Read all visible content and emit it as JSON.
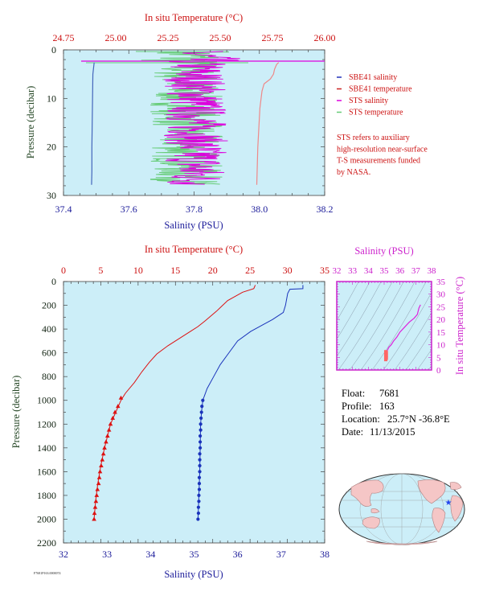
{
  "chart_data": [
    {
      "type": "line",
      "panel": "top",
      "axes": {
        "x_bottom": {
          "label": "Salinity (PSU)",
          "range": [
            37.4,
            38.2
          ],
          "ticks": [
            "37.4",
            "37.6",
            "37.8",
            "38.0",
            "38.2"
          ]
        },
        "x_top": {
          "label": "In situ Temperature (°C)",
          "range": [
            24.75,
            26.0
          ],
          "ticks": [
            "24.75",
            "25.00",
            "25.25",
            "25.50",
            "25.75",
            "26.00"
          ]
        },
        "y": {
          "label": "Pressure (decibar)",
          "range": [
            0,
            30
          ],
          "inverted": true,
          "ticks": [
            "0",
            "10",
            "20",
            "30"
          ]
        }
      },
      "legend": {
        "placement": "right",
        "entries": [
          {
            "label": "SBE41 salinity",
            "color": "#2233bb"
          },
          {
            "label": "SBE41 temperature",
            "color": "#cc2222"
          },
          {
            "label": "STS salinity",
            "color": "#dd00dd"
          },
          {
            "label": "STS temperature",
            "color": "#66cc77"
          }
        ],
        "note": "STS refers to auxiliary high-resolution near-surface T-S measurements funded by NASA.",
        "note_lines": [
          "STS refers to auxiliary",
          "high-resolution near-surface",
          "T-S measurements funded",
          "by NASA."
        ]
      },
      "series": [
        {
          "name": "SBE41 salinity",
          "axis": "salinity",
          "points": [
            [
              37.494,
              2.6
            ],
            [
              37.49,
              5
            ],
            [
              37.489,
              10
            ],
            [
              37.488,
              15
            ],
            [
              37.487,
              20
            ],
            [
              37.487,
              25
            ],
            [
              37.486,
              27.8
            ]
          ]
        },
        {
          "name": "SBE41 temperature",
          "axis": "temperature",
          "points": [
            [
              25.78,
              2.6
            ],
            [
              25.77,
              3.0
            ],
            [
              25.76,
              4.0
            ],
            [
              25.755,
              5.0
            ],
            [
              25.74,
              6.0
            ],
            [
              25.71,
              7.0
            ],
            [
              25.7,
              8.5
            ],
            [
              25.69,
              12
            ],
            [
              25.68,
              20
            ],
            [
              25.675,
              27.8
            ]
          ]
        }
      ]
    },
    {
      "type": "line",
      "panel": "bottom",
      "axes": {
        "x_bottom": {
          "label": "Salinity (PSU)",
          "range": [
            32,
            38
          ],
          "ticks": [
            "32",
            "33",
            "34",
            "35",
            "36",
            "37",
            "38"
          ]
        },
        "x_top": {
          "label": "In situ Temperature (°C)",
          "range": [
            0,
            35
          ],
          "ticks": [
            "0",
            "5",
            "10",
            "15",
            "20",
            "25",
            "30",
            "35"
          ]
        },
        "y": {
          "label": "Pressure (decibar)",
          "range": [
            0,
            2200
          ],
          "inverted": true,
          "ticks": [
            "0",
            "200",
            "400",
            "600",
            "800",
            "1000",
            "1200",
            "1400",
            "1600",
            "1800",
            "2000",
            "2200"
          ]
        }
      },
      "series": [
        {
          "name": "Salinity",
          "axis": "salinity",
          "color": "#1a33bb",
          "points": [
            [
              37.5,
              30
            ],
            [
              37.5,
              60
            ],
            [
              37.2,
              65
            ],
            [
              37.15,
              100
            ],
            [
              37.1,
              200
            ],
            [
              37.05,
              260
            ],
            [
              36.8,
              320
            ],
            [
              36.6,
              360
            ],
            [
              36.3,
              420
            ],
            [
              36.0,
              500
            ],
            [
              35.8,
              600
            ],
            [
              35.6,
              700
            ],
            [
              35.45,
              800
            ],
            [
              35.3,
              900
            ],
            [
              35.2,
              1000
            ],
            [
              35.17,
              1100
            ],
            [
              35.15,
              1200
            ],
            [
              35.14,
              1400
            ],
            [
              35.13,
              1600
            ],
            [
              35.11,
              1800
            ],
            [
              35.09,
              2000
            ]
          ],
          "markers": [
            [
              35.2,
              1000
            ],
            [
              35.18,
              1050
            ],
            [
              35.17,
              1100
            ],
            [
              35.16,
              1150
            ],
            [
              35.15,
              1200
            ],
            [
              35.15,
              1250
            ],
            [
              35.14,
              1300
            ],
            [
              35.14,
              1350
            ],
            [
              35.14,
              1400
            ],
            [
              35.13,
              1450
            ],
            [
              35.13,
              1500
            ],
            [
              35.13,
              1550
            ],
            [
              35.13,
              1600
            ],
            [
              35.12,
              1650
            ],
            [
              35.12,
              1700
            ],
            [
              35.12,
              1750
            ],
            [
              35.11,
              1800
            ],
            [
              35.11,
              1850
            ],
            [
              35.1,
              1900
            ],
            [
              35.1,
              1950
            ],
            [
              35.09,
              2000
            ]
          ]
        },
        {
          "name": "In situ Temperature",
          "axis": "temperature",
          "color": "#dd1111",
          "points": [
            [
              25.7,
              30
            ],
            [
              25.5,
              60
            ],
            [
              24.0,
              90
            ],
            [
              22.0,
              160
            ],
            [
              20.5,
              250
            ],
            [
              19.0,
              330
            ],
            [
              18.0,
              380
            ],
            [
              17.0,
              420
            ],
            [
              15.5,
              480
            ],
            [
              14.0,
              540
            ],
            [
              12.5,
              610
            ],
            [
              11.5,
              680
            ],
            [
              10.5,
              760
            ],
            [
              9.5,
              850
            ],
            [
              8.3,
              940
            ],
            [
              7.7,
              1000
            ],
            [
              7.0,
              1100
            ],
            [
              6.3,
              1200
            ],
            [
              5.5,
              1400
            ],
            [
              5.0,
              1550
            ],
            [
              4.6,
              1700
            ],
            [
              4.3,
              1850
            ],
            [
              4.1,
              2000
            ]
          ],
          "markers": [
            [
              7.7,
              980
            ],
            [
              7.3,
              1050
            ],
            [
              6.9,
              1100
            ],
            [
              6.6,
              1150
            ],
            [
              6.3,
              1200
            ],
            [
              6.1,
              1250
            ],
            [
              5.9,
              1300
            ],
            [
              5.7,
              1350
            ],
            [
              5.5,
              1400
            ],
            [
              5.35,
              1450
            ],
            [
              5.2,
              1500
            ],
            [
              5.05,
              1550
            ],
            [
              4.9,
              1600
            ],
            [
              4.8,
              1650
            ],
            [
              4.7,
              1700
            ],
            [
              4.55,
              1750
            ],
            [
              4.45,
              1800
            ],
            [
              4.35,
              1850
            ],
            [
              4.25,
              1900
            ],
            [
              4.15,
              1950
            ],
            [
              4.1,
              2000
            ]
          ]
        }
      ]
    },
    {
      "type": "line",
      "panel": "inset-ts",
      "axes": {
        "x_top": {
          "label": "Salinity (PSU)",
          "range": [
            32,
            38
          ],
          "ticks": [
            "32",
            "33",
            "34",
            "35",
            "36",
            "37",
            "38"
          ]
        },
        "y": {
          "label": "In situ Temperature (°C)",
          "range": [
            0,
            35
          ],
          "ticks": [
            "0",
            "5",
            "10",
            "15",
            "20",
            "25",
            "30",
            "35"
          ]
        }
      },
      "series": [
        {
          "name": "T-S",
          "color": "#dd22dd",
          "points": [
            [
              37.3,
              25.8
            ],
            [
              37.2,
              24.5
            ],
            [
              37.1,
              22.0
            ],
            [
              36.9,
              20.5
            ],
            [
              36.6,
              19.0
            ],
            [
              36.3,
              17.0
            ],
            [
              36.0,
              15.0
            ],
            [
              35.8,
              13.0
            ],
            [
              35.6,
              11.5
            ],
            [
              35.45,
              10.0
            ],
            [
              35.3,
              9.0
            ],
            [
              35.2,
              7.8
            ],
            [
              35.15,
              6.5
            ],
            [
              35.12,
              5.5
            ],
            [
              35.1,
              4.2
            ]
          ]
        }
      ]
    }
  ],
  "info": {
    "float_label": "Float:",
    "float_value": "7681",
    "profile_label": "Profile:",
    "profile_value": "163",
    "location_label": "Location:",
    "location_value": "25.7°N  -36.8°E",
    "date_label": "Date:",
    "date_value": "11/13/2015"
  },
  "map": {
    "marker_color": "#2244ee"
  },
  "footer_code": "F7681P163.0000074",
  "colors": {
    "plot_bg": "#cceef8",
    "temp": "#dd1111",
    "sal": "#1a33bb",
    "sts_sal": "#dd00dd",
    "sts_temp": "#66cc77",
    "magenta_axis": "#cc22cc"
  }
}
